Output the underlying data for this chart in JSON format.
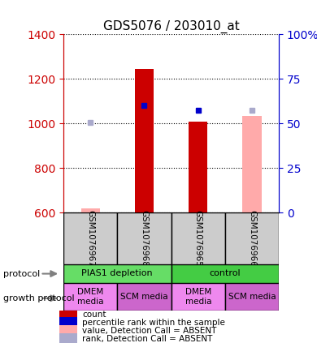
{
  "title": "GDS5076 / 203010_at",
  "samples": [
    "GSM1076967",
    "GSM1076968",
    "GSM1076965",
    "GSM1076966"
  ],
  "ylim_left": [
    600,
    1400
  ],
  "ylim_right": [
    0,
    100
  ],
  "yticks_left": [
    600,
    800,
    1000,
    1200,
    1400
  ],
  "yticks_right": [
    0,
    25,
    50,
    75,
    100
  ],
  "ytick_right_labels": [
    "0",
    "25",
    "50",
    "75",
    "100%"
  ],
  "bar_base": 600,
  "count_bars": {
    "GSM1076967": null,
    "GSM1076968": 1243,
    "GSM1076965": 1007,
    "GSM1076966": null
  },
  "absent_value_bars": {
    "GSM1076967": 620,
    "GSM1076968": null,
    "GSM1076965": null,
    "GSM1076966": 1035
  },
  "percentile_rank_dots": {
    "GSM1076967": null,
    "GSM1076968": 1080,
    "GSM1076965": 1060,
    "GSM1076966": null
  },
  "absent_rank_dots": {
    "GSM1076967": 1005,
    "GSM1076968": null,
    "GSM1076965": null,
    "GSM1076966": 1060
  },
  "protocol_groups": [
    {
      "label": "PIAS1 depletion",
      "cols": [
        0,
        1
      ],
      "color": "#66dd66"
    },
    {
      "label": "control",
      "cols": [
        2,
        3
      ],
      "color": "#44cc44"
    }
  ],
  "growth_groups": [
    {
      "label": "DMEM\nmedia",
      "cols": [
        0
      ],
      "color": "#ee88ee"
    },
    {
      "label": "SCM media",
      "cols": [
        1
      ],
      "color": "#cc66cc"
    },
    {
      "label": "DMEM\nmedia",
      "cols": [
        2
      ],
      "color": "#ee88ee"
    },
    {
      "label": "SCM media",
      "cols": [
        3
      ],
      "color": "#cc66cc"
    }
  ],
  "count_bar_color": "#cc0000",
  "absent_value_bar_color": "#ffaaaa",
  "rank_dot_color": "#0000cc",
  "absent_rank_dot_color": "#aaaacc",
  "sample_box_color": "#cccccc",
  "left_axis_color": "#cc0000",
  "right_axis_color": "#0000cc",
  "legend_items": [
    {
      "color": "#cc0000",
      "label": "count"
    },
    {
      "color": "#0000cc",
      "label": "percentile rank within the sample"
    },
    {
      "color": "#ffaaaa",
      "label": "value, Detection Call = ABSENT"
    },
    {
      "color": "#aaaacc",
      "label": "rank, Detection Call = ABSENT"
    }
  ]
}
